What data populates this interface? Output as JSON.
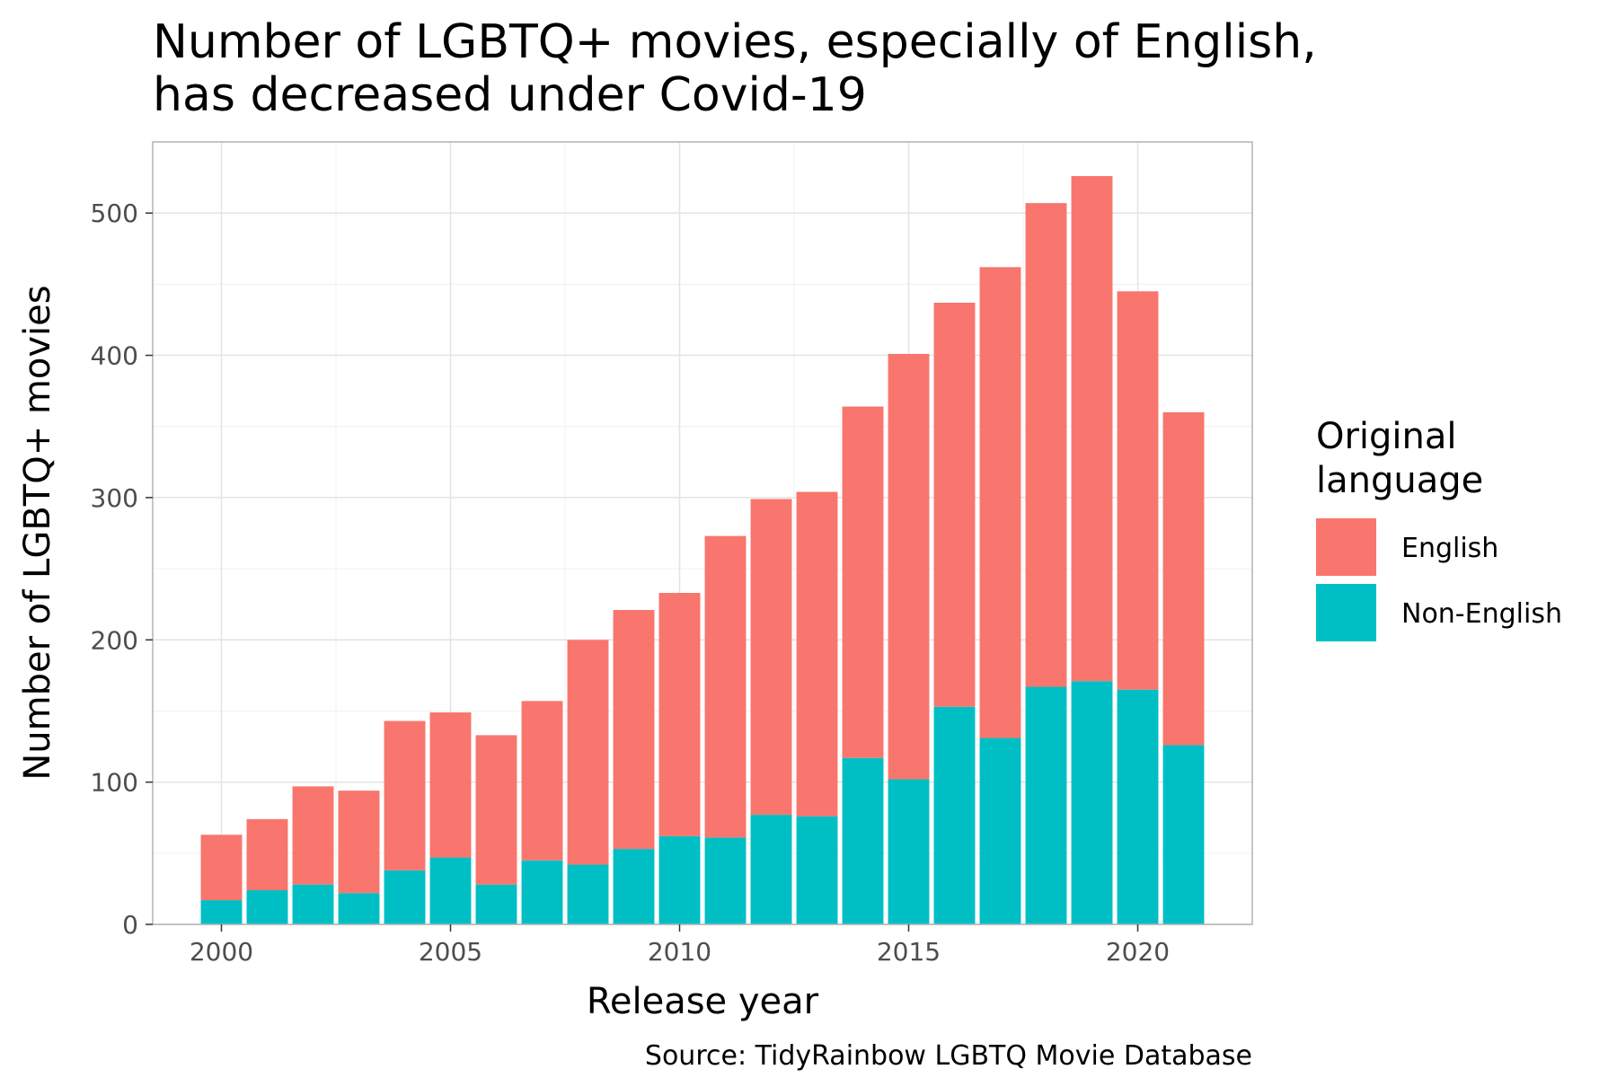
{
  "chart_data": {
    "type": "bar",
    "stacked": true,
    "title_lines": [
      "Number of LGBTQ+ movies, especially of English,",
      "has decreased under Covid-19"
    ],
    "xlabel": "Release year",
    "ylabel": "Number of LGBTQ+ movies",
    "caption": "Source: TidyRainbow LGBTQ Movie Database",
    "x": [
      2000,
      2001,
      2002,
      2003,
      2004,
      2005,
      2006,
      2007,
      2008,
      2009,
      2010,
      2011,
      2012,
      2013,
      2014,
      2015,
      2016,
      2017,
      2018,
      2019,
      2020,
      2021
    ],
    "xlim": [
      1998.5,
      2022.5
    ],
    "ylim": [
      0,
      550
    ],
    "x_ticks": [
      2000,
      2005,
      2010,
      2015,
      2020
    ],
    "x_tick_labels": [
      "2000",
      "2005",
      "2010",
      "2015",
      "2020"
    ],
    "y_ticks": [
      0,
      100,
      200,
      300,
      400,
      500
    ],
    "y_tick_labels": [
      "0",
      "100",
      "200",
      "300",
      "400",
      "500"
    ],
    "grid": true,
    "legend": {
      "title_lines": [
        "Original",
        "language"
      ],
      "position": "right"
    },
    "series": [
      {
        "name": "English",
        "color": "#F8766D",
        "values": [
          46,
          50,
          69,
          72,
          105,
          102,
          105,
          112,
          158,
          168,
          171,
          212,
          222,
          228,
          247,
          299,
          284,
          331,
          340,
          355,
          280,
          234
        ]
      },
      {
        "name": "Non-English",
        "color": "#00BFC4",
        "values": [
          17,
          24,
          28,
          22,
          38,
          47,
          28,
          45,
          42,
          53,
          62,
          61,
          77,
          76,
          117,
          102,
          153,
          131,
          167,
          171,
          165,
          126
        ]
      }
    ]
  }
}
